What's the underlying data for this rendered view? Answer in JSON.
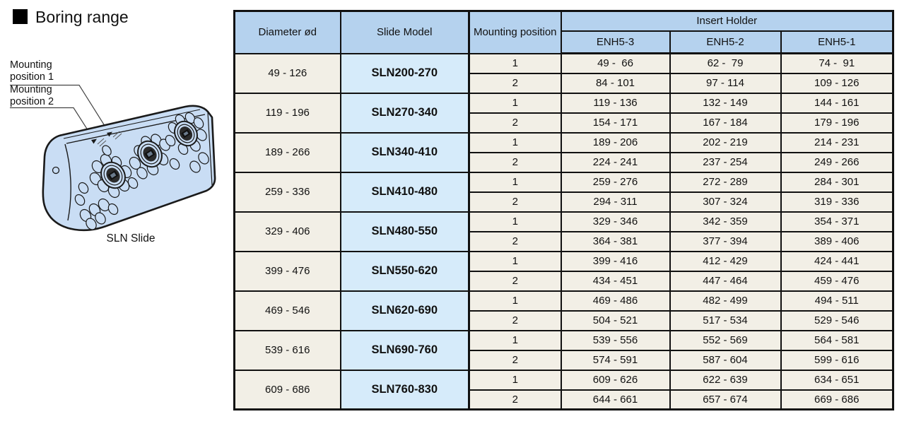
{
  "heading": {
    "title": "Boring range"
  },
  "illustration": {
    "caption": "SLN Slide",
    "labels": [
      {
        "text": "Mounting\nposition 1"
      },
      {
        "text": "Mounting\nposition 2"
      }
    ]
  },
  "colors": {
    "header_blue": "#b5d2ee",
    "model_cell_blue": "#d6ebfa",
    "data_cell_cream": "#f2efe6",
    "illustration_blue": "#c9ddf4",
    "border_black": "#111111"
  },
  "table": {
    "headers": {
      "diameter": "Diameter ød",
      "slide_model": "Slide Model",
      "mounting_position": "Mounting position",
      "insert_holder": "Insert Holder",
      "insert_holder_cols": [
        "ENH5-3",
        "ENH5-2",
        "ENH5-1"
      ]
    },
    "groups": [
      {
        "diameter": "49 - 126",
        "model": "SLN200-270",
        "rows": [
          {
            "position": "1",
            "values": [
              "49 -  66",
              "62 -  79",
              "74 -  91"
            ]
          },
          {
            "position": "2",
            "values": [
              "84 - 101",
              "97 - 114",
              "109 - 126"
            ]
          }
        ]
      },
      {
        "diameter": "119 - 196",
        "model": "SLN270-340",
        "rows": [
          {
            "position": "1",
            "values": [
              "119 - 136",
              "132 - 149",
              "144 - 161"
            ]
          },
          {
            "position": "2",
            "values": [
              "154 - 171",
              "167 - 184",
              "179 - 196"
            ]
          }
        ]
      },
      {
        "diameter": "189 - 266",
        "model": "SLN340-410",
        "rows": [
          {
            "position": "1",
            "values": [
              "189 - 206",
              "202 - 219",
              "214 - 231"
            ]
          },
          {
            "position": "2",
            "values": [
              "224 - 241",
              "237 - 254",
              "249 - 266"
            ]
          }
        ]
      },
      {
        "diameter": "259 - 336",
        "model": "SLN410-480",
        "rows": [
          {
            "position": "1",
            "values": [
              "259 - 276",
              "272 - 289",
              "284 - 301"
            ]
          },
          {
            "position": "2",
            "values": [
              "294 - 311",
              "307 - 324",
              "319 - 336"
            ]
          }
        ]
      },
      {
        "diameter": "329 - 406",
        "model": "SLN480-550",
        "rows": [
          {
            "position": "1",
            "values": [
              "329 - 346",
              "342 - 359",
              "354 - 371"
            ]
          },
          {
            "position": "2",
            "values": [
              "364 - 381",
              "377 - 394",
              "389 - 406"
            ]
          }
        ]
      },
      {
        "diameter": "399 - 476",
        "model": "SLN550-620",
        "rows": [
          {
            "position": "1",
            "values": [
              "399 - 416",
              "412 - 429",
              "424 - 441"
            ]
          },
          {
            "position": "2",
            "values": [
              "434 - 451",
              "447 - 464",
              "459 - 476"
            ]
          }
        ]
      },
      {
        "diameter": "469 - 546",
        "model": "SLN620-690",
        "rows": [
          {
            "position": "1",
            "values": [
              "469 - 486",
              "482 - 499",
              "494 - 511"
            ]
          },
          {
            "position": "2",
            "values": [
              "504 - 521",
              "517 - 534",
              "529 - 546"
            ]
          }
        ]
      },
      {
        "diameter": "539 - 616",
        "model": "SLN690-760",
        "rows": [
          {
            "position": "1",
            "values": [
              "539 - 556",
              "552 - 569",
              "564 - 581"
            ]
          },
          {
            "position": "2",
            "values": [
              "574 - 591",
              "587 - 604",
              "599 - 616"
            ]
          }
        ]
      },
      {
        "diameter": "609 - 686",
        "model": "SLN760-830",
        "rows": [
          {
            "position": "1",
            "values": [
              "609 - 626",
              "622 - 639",
              "634 - 651"
            ]
          },
          {
            "position": "2",
            "values": [
              "644 - 661",
              "657 - 674",
              "669 - 686"
            ]
          }
        ]
      }
    ]
  }
}
